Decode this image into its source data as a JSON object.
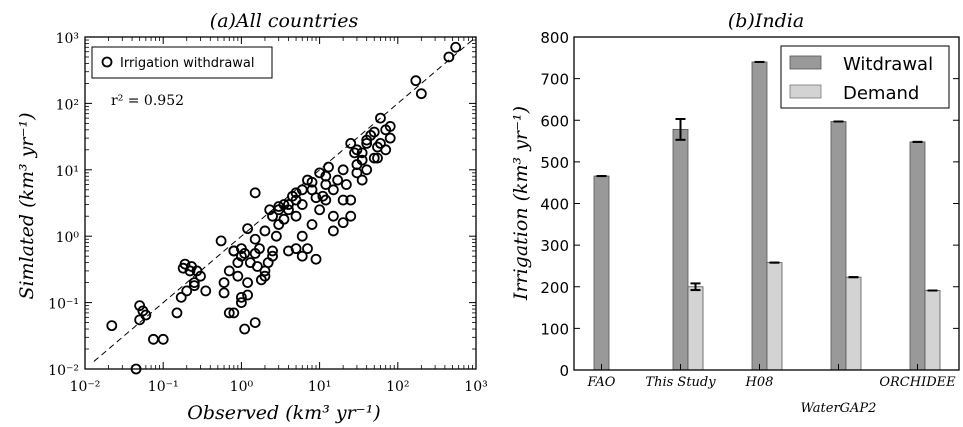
{
  "chart_data": [
    {
      "type": "scatter",
      "title": "(a)All countries",
      "xlabel": "Observed (km³ yr⁻¹)",
      "ylabel": "Simlated (km³ yr⁻¹)",
      "xscale": "log",
      "yscale": "log",
      "xlim": [
        0.01,
        1000
      ],
      "ylim": [
        0.01,
        1000
      ],
      "xticks": [
        "10⁻²",
        "10⁻¹",
        "10⁰",
        "10¹",
        "10²",
        "10³"
      ],
      "yticks": [
        "10⁻²",
        "10⁻¹",
        "10⁰",
        "10¹",
        "10²",
        "10³"
      ],
      "legend": {
        "placement": "top-left",
        "entries": [
          "Irrigation withdrawal"
        ]
      },
      "annotation": "r² = 0.952",
      "reference_line": "1:1 dashed",
      "series": [
        {
          "name": "Irrigation withdrawal",
          "x": [
            0.022,
            0.045,
            0.05,
            0.055,
            0.06,
            0.05,
            0.075,
            0.1,
            0.15,
            0.17,
            0.19,
            0.2,
            0.22,
            0.23,
            0.25,
            0.27,
            0.3,
            0.35,
            0.18,
            0.25,
            0.55,
            0.6,
            0.7,
            0.8,
            0.9,
            1.0,
            1.1,
            1.2,
            1.3,
            1.5,
            1.6,
            1.7,
            1.8,
            2.0,
            2.2,
            2.5,
            2.8,
            3.0,
            3.5,
            4.0,
            5.0,
            6.0,
            7.0,
            8.0,
            10.0,
            12.0,
            15.0,
            20.0,
            25.0,
            30.0,
            35.0,
            40.0,
            50.0,
            60.0,
            80.0,
            0.8,
            1.0,
            1.2,
            1.5,
            2.0,
            2.5,
            3.0,
            3.5,
            4.5,
            5.0,
            6.0,
            7.0,
            8.0,
            9.0,
            10.0,
            11.0,
            12.0,
            13.0,
            15.0,
            17.0,
            20.0,
            22.0,
            25.0,
            28.0,
            30.0,
            35.0,
            40.0,
            45.0,
            50.0,
            55.0,
            60.0,
            70.0,
            80.0,
            3.0,
            4.0,
            5.0,
            6.0,
            1.2,
            1.5,
            0.9,
            1.0,
            1.1,
            0.7,
            0.6,
            0.8,
            1.0,
            1.5,
            2.0,
            2.5,
            5.0,
            6.0,
            9.0,
            15.0,
            20.0,
            25.0,
            35.0,
            40.0,
            55.0,
            70.0,
            30.0,
            12.0,
            2.3,
            4.0,
            8.0,
            450.0,
            200.0,
            170.0,
            550.0
          ],
          "y": [
            0.045,
            0.01,
            0.055,
            0.075,
            0.065,
            0.09,
            0.028,
            0.028,
            0.07,
            0.12,
            0.38,
            0.15,
            0.3,
            0.35,
            0.2,
            0.3,
            0.25,
            0.15,
            0.33,
            0.18,
            0.85,
            0.2,
            0.07,
            0.6,
            0.25,
            0.12,
            0.04,
            0.13,
            0.4,
            0.05,
            0.35,
            0.65,
            0.22,
            0.25,
            0.4,
            0.6,
            1.0,
            1.5,
            3.0,
            0.6,
            2.0,
            3.0,
            0.65,
            1.5,
            2.5,
            3.5,
            2.0,
            3.5,
            2.0,
            12.0,
            18.0,
            25.0,
            15.0,
            25.0,
            30.0,
            0.6,
            0.65,
            1.3,
            4.5,
            1.2,
            2.0,
            2.8,
            1.8,
            4.0,
            3.5,
            1.0,
            7.0,
            5.0,
            3.8,
            9.0,
            4.0,
            6.0,
            11.0,
            5.0,
            7.0,
            10.0,
            6.0,
            25.0,
            18.0,
            20.0,
            14.0,
            28.0,
            33.0,
            37.0,
            22.0,
            60.0,
            40.0,
            45.0,
            2.5,
            3.0,
            4.5,
            5.0,
            0.2,
            0.9,
            0.4,
            0.5,
            0.55,
            0.3,
            0.14,
            0.07,
            0.1,
            0.55,
            0.3,
            0.5,
            0.65,
            0.5,
            0.45,
            1.2,
            1.6,
            3.5,
            7.0,
            10.0,
            15.0,
            20.0,
            9.0,
            8.0,
            2.5,
            2.5,
            6.5,
            500.0,
            140.0,
            220.0,
            700.0
          ]
        }
      ]
    },
    {
      "type": "bar",
      "title": "(b)India",
      "xlabel": "",
      "ylabel": "Irrigation (km³ yr⁻¹)",
      "ylim": [
        0,
        800
      ],
      "yticks": [
        0,
        100,
        200,
        300,
        400,
        500,
        600,
        700,
        800
      ],
      "categories": [
        "FAO",
        "This Study",
        "H08",
        "WaterGAP2",
        "ORCHIDEE"
      ],
      "legend": {
        "placement": "top-right",
        "entries": [
          "Witdrawal",
          "Demand"
        ]
      },
      "series": [
        {
          "name": "Witdrawal",
          "color": "#999999",
          "values": [
            466,
            578,
            740,
            597,
            548
          ],
          "errors": [
            0,
            25,
            0,
            0,
            0
          ]
        },
        {
          "name": "Demand",
          "color": "#d3d3d3",
          "values": [
            null,
            200,
            258,
            223,
            191
          ],
          "errors": [
            0,
            8,
            0,
            0,
            0
          ]
        }
      ]
    }
  ]
}
